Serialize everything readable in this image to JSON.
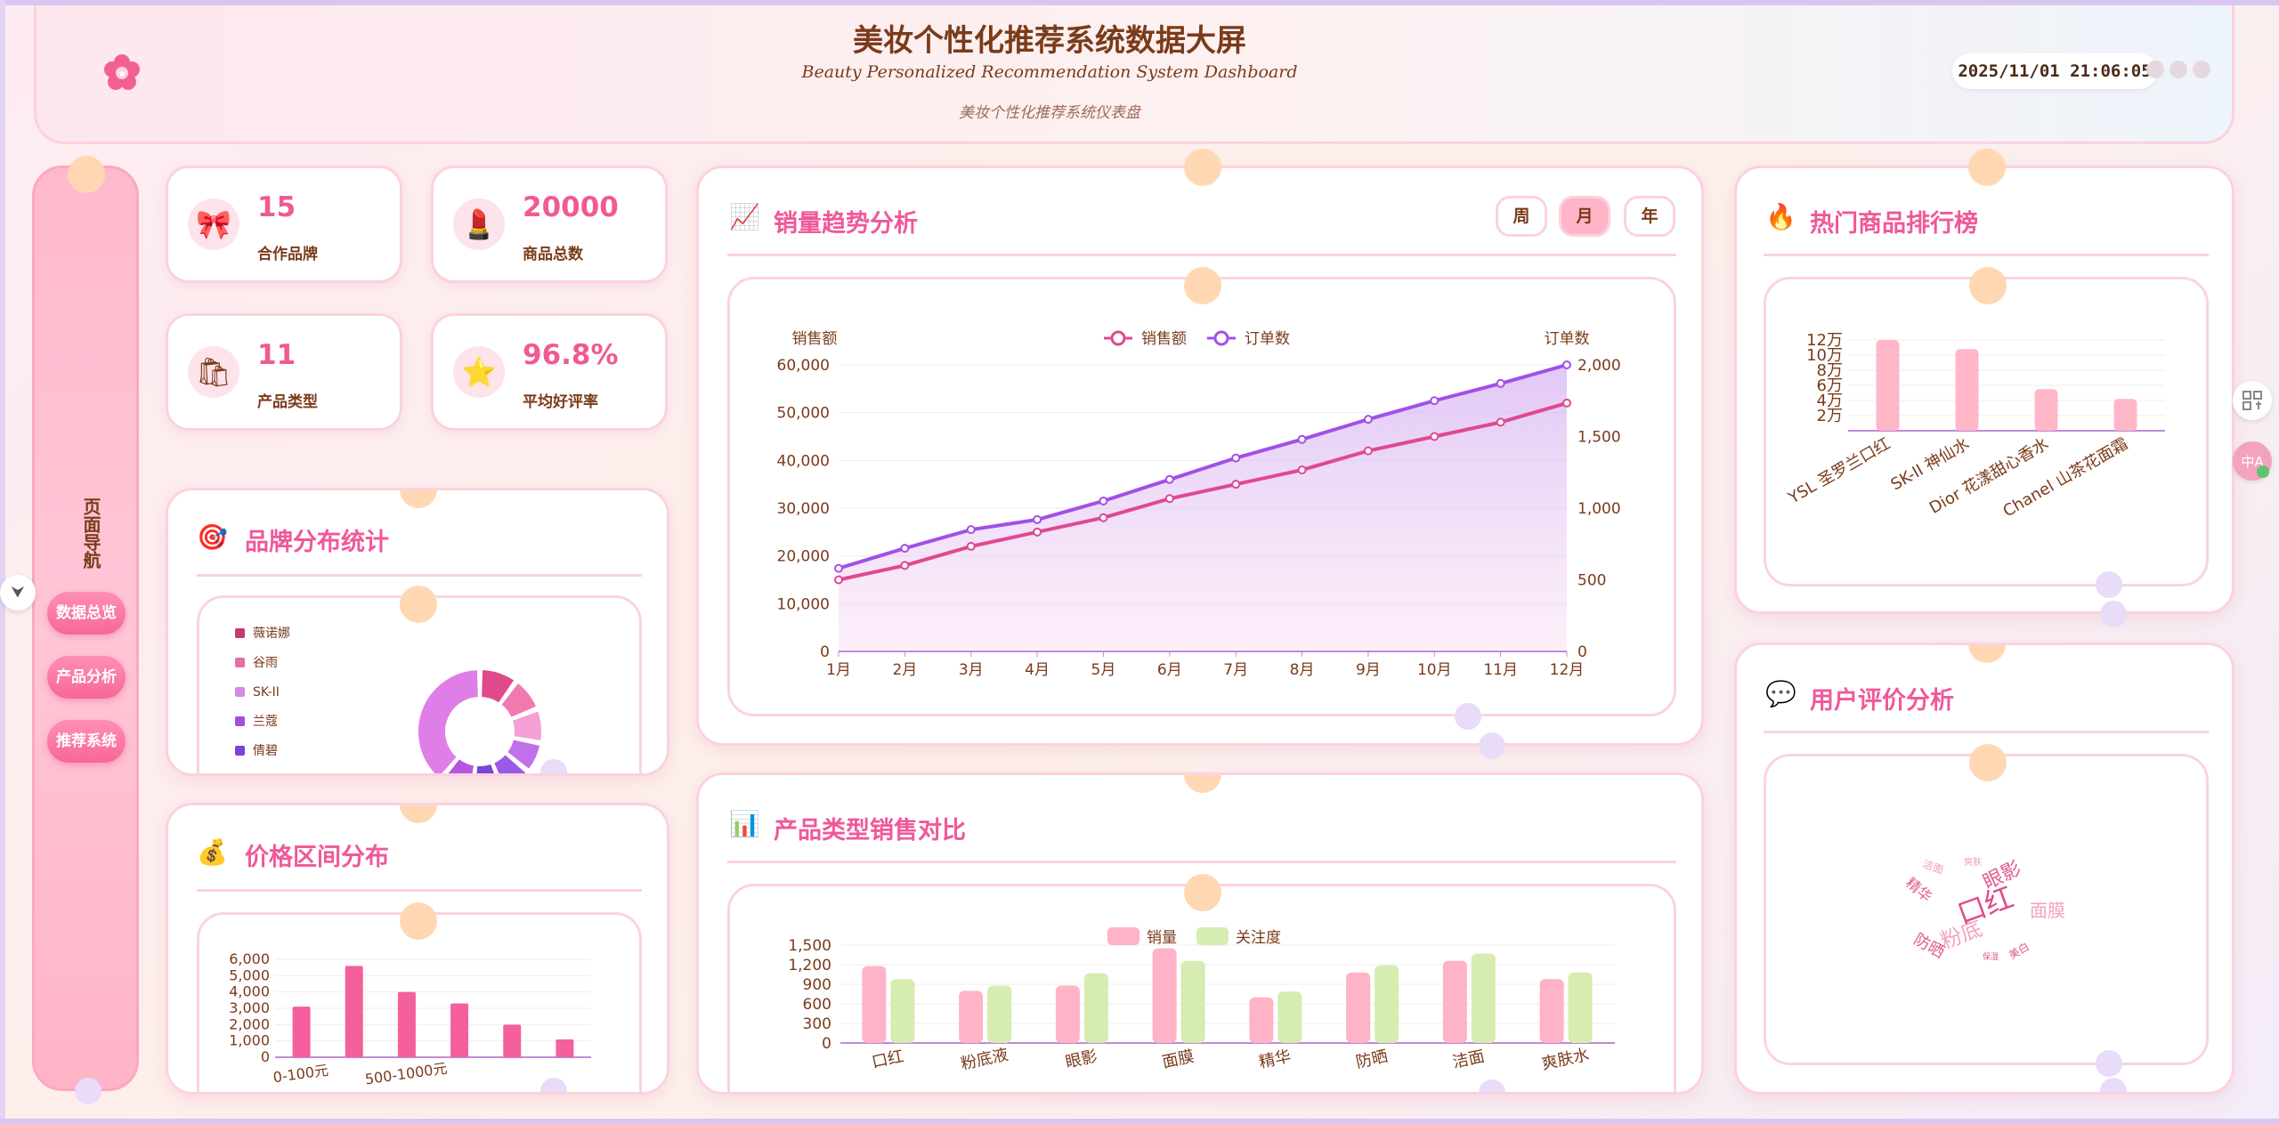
{
  "header": {
    "title": "美妆个性化推荐系统数据大屏",
    "title_en": "Beauty Personalized Recommendation System Dashboard",
    "subtitle": "美妆个性化推荐系统仪表盘",
    "datetime": "2025/11/01 21:06:05",
    "logo_icon": "flower-icon"
  },
  "sidebar": {
    "title": "页面导航",
    "items": [
      {
        "label": "数据总览"
      },
      {
        "label": "产品分析"
      },
      {
        "label": "推荐系统"
      }
    ]
  },
  "stats": [
    {
      "value": "15",
      "label": "合作品牌",
      "icon": "bow-icon"
    },
    {
      "value": "20000",
      "label": "商品总数",
      "icon": "lipstick-icon"
    },
    {
      "value": "11",
      "label": "产品类型",
      "icon": "shopping-bag-icon"
    },
    {
      "value": "96.8%",
      "label": "平均好评率",
      "icon": "star-icon"
    }
  ],
  "sections": {
    "brand": "品牌分布统计",
    "price": "价格区间分布",
    "sales_trend": "销量趋势分析",
    "category": "产品类型销售对比",
    "hot": "热门商品排行榜",
    "review": "用户评价分析"
  },
  "period_tabs": [
    {
      "label": "周",
      "active": false
    },
    {
      "label": "月",
      "active": true
    },
    {
      "label": "年",
      "active": false
    }
  ],
  "colors": {
    "accent": "#f0589a",
    "sales_line": "#e0488f",
    "orders_line": "#a050e8",
    "bar_pink": "#f3609c",
    "card_border": "#fbd2de"
  },
  "chart_data": [
    {
      "id": "sales_trend",
      "type": "line",
      "categories": [
        "1月",
        "2月",
        "3月",
        "4月",
        "5月",
        "6月",
        "7月",
        "8月",
        "9月",
        "10月",
        "11月",
        "12月"
      ],
      "ylabel": "销售额",
      "y2label": "订单数",
      "ylim": [
        0,
        60000
      ],
      "y2lim": [
        0,
        2000
      ],
      "yticks": [
        "0",
        "10,000",
        "20,000",
        "30,000",
        "40,000",
        "50,000",
        "60,000"
      ],
      "y2ticks": [
        "0",
        "500",
        "1,000",
        "1,500",
        "2,000"
      ],
      "legend_position": "top-center",
      "series": [
        {
          "name": "销售额",
          "axis": "left",
          "values": [
            15000,
            18000,
            22000,
            25000,
            28000,
            32000,
            35000,
            38000,
            42000,
            45000,
            48000,
            52000
          ]
        },
        {
          "name": "订单数",
          "axis": "right",
          "values": [
            580,
            720,
            850,
            920,
            1050,
            1200,
            1350,
            1480,
            1620,
            1750,
            1870,
            2000
          ]
        }
      ]
    },
    {
      "id": "brand_distribution",
      "type": "pie",
      "legend": [
        "薇诺娜",
        "谷雨",
        "SK-II",
        "兰蔻",
        "倩碧"
      ],
      "colors": [
        "#e04a8a",
        "#f07ab0",
        "#f3a0d6",
        "#c070e8",
        "#9a5ae6",
        "#7a44d8",
        "#b456e0",
        "#e07ee8"
      ],
      "values": [
        10,
        9,
        9,
        8,
        8,
        8,
        9,
        39
      ]
    },
    {
      "id": "price_distribution",
      "type": "bar",
      "categories": [
        "0-100元",
        "",
        "500-1000元",
        "",
        "",
        ""
      ],
      "tick_labels_shown": [
        "0-100元",
        "500-1000元"
      ],
      "values": [
        3100,
        5600,
        4000,
        3300,
        2000,
        1100
      ],
      "ylim": [
        0,
        6000
      ],
      "yticks": [
        "0",
        "1,000",
        "2,000",
        "3,000",
        "4,000",
        "5,000",
        "6,000"
      ]
    },
    {
      "id": "category_sales",
      "type": "bar",
      "categories": [
        "口红",
        "粉底液",
        "眼影",
        "面膜",
        "精华",
        "防晒",
        "洁面",
        "爽肤水"
      ],
      "ylim": [
        0,
        1500
      ],
      "yticks": [
        "0",
        "300",
        "600",
        "900",
        "1,200",
        "1,500"
      ],
      "legend_position": "top-center",
      "series": [
        {
          "name": "销量",
          "values": [
            1180,
            800,
            880,
            1450,
            700,
            1080,
            1260,
            980
          ]
        },
        {
          "name": "关注度",
          "values": [
            980,
            880,
            1070,
            1260,
            790,
            1190,
            1370,
            1080
          ]
        }
      ]
    },
    {
      "id": "hot_products",
      "type": "bar",
      "categories": [
        "YSL 圣罗兰口红",
        "SK-II 神仙水",
        "Dior 花漾甜心香水",
        "Chanel 山茶花面霜"
      ],
      "values": [
        120000,
        108000,
        55000,
        42000
      ],
      "ylim": [
        0,
        120000
      ],
      "yticks": [
        "2万",
        "4万",
        "6万",
        "8万",
        "10万",
        "12万"
      ]
    },
    {
      "id": "review_wordcloud",
      "type": "wordcloud",
      "words": [
        "口红",
        "粉底",
        "眼影",
        "面膜",
        "防晒",
        "精华",
        "洁面",
        "爽肤",
        "美白",
        "保湿"
      ]
    }
  ]
}
